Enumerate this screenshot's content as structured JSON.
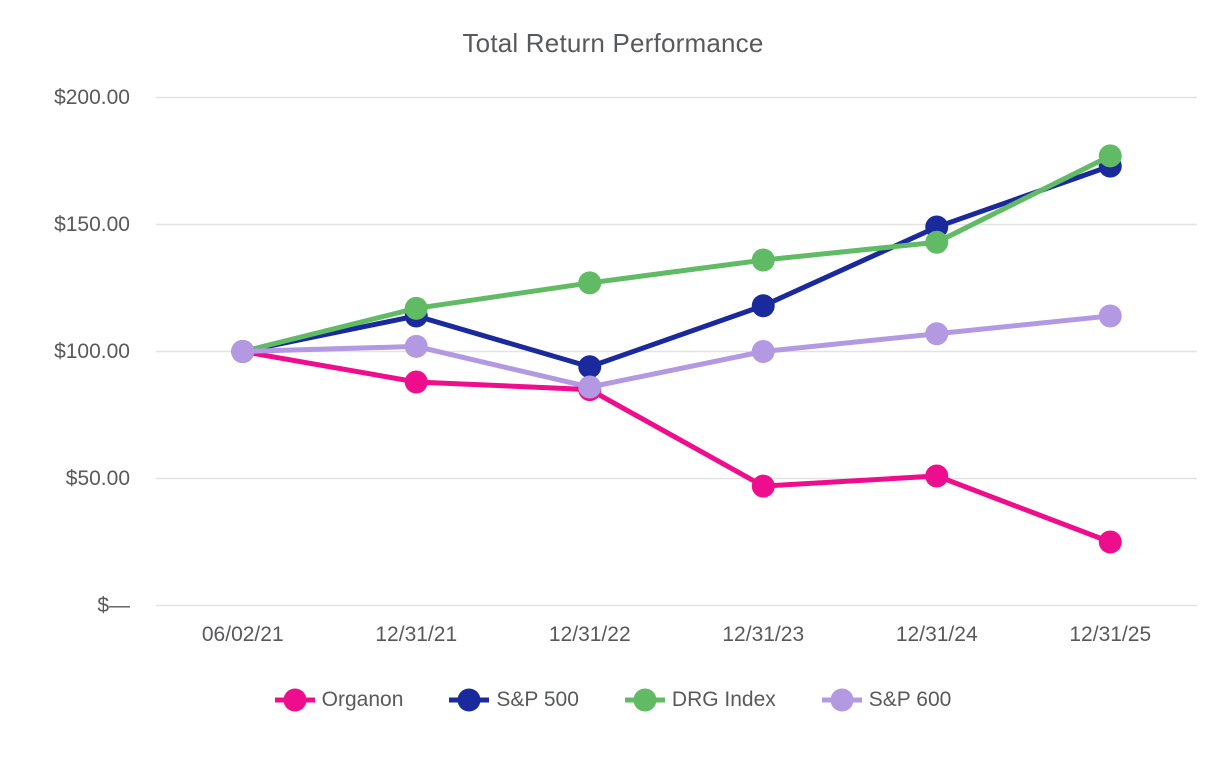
{
  "chart_data": {
    "type": "line",
    "title": "Total Return Performance",
    "categories": [
      "06/02/21",
      "12/31/21",
      "12/31/22",
      "12/31/23",
      "12/31/24",
      "12/31/25"
    ],
    "series": [
      {
        "name": "Organon",
        "color": "#EE0D8C",
        "values": [
          100,
          88,
          85,
          47,
          51,
          25
        ]
      },
      {
        "name": "S&P 500",
        "color": "#1A2A9C",
        "values": [
          100,
          114,
          94,
          118,
          149,
          173
        ]
      },
      {
        "name": "DRG Index",
        "color": "#60BB64",
        "values": [
          100,
          117,
          127,
          136,
          143,
          177
        ]
      },
      {
        "name": "S&P 600",
        "color": "#B299E2",
        "values": [
          100,
          102,
          86,
          100,
          107,
          114
        ]
      }
    ],
    "y_ticks": [
      {
        "label": "$200.00",
        "value": 200
      },
      {
        "label": "$150.00",
        "value": 150
      },
      {
        "label": "$100.00",
        "value": 100
      },
      {
        "label": "$50.00",
        "value": 50
      },
      {
        "label": "$—",
        "value": 0
      }
    ],
    "ylim": [
      0,
      200
    ],
    "xlabel": "",
    "ylabel": "",
    "grid": "horizontal",
    "legend_position": "bottom",
    "text_color": "#58595B",
    "grid_color": "#E3E3E3"
  }
}
